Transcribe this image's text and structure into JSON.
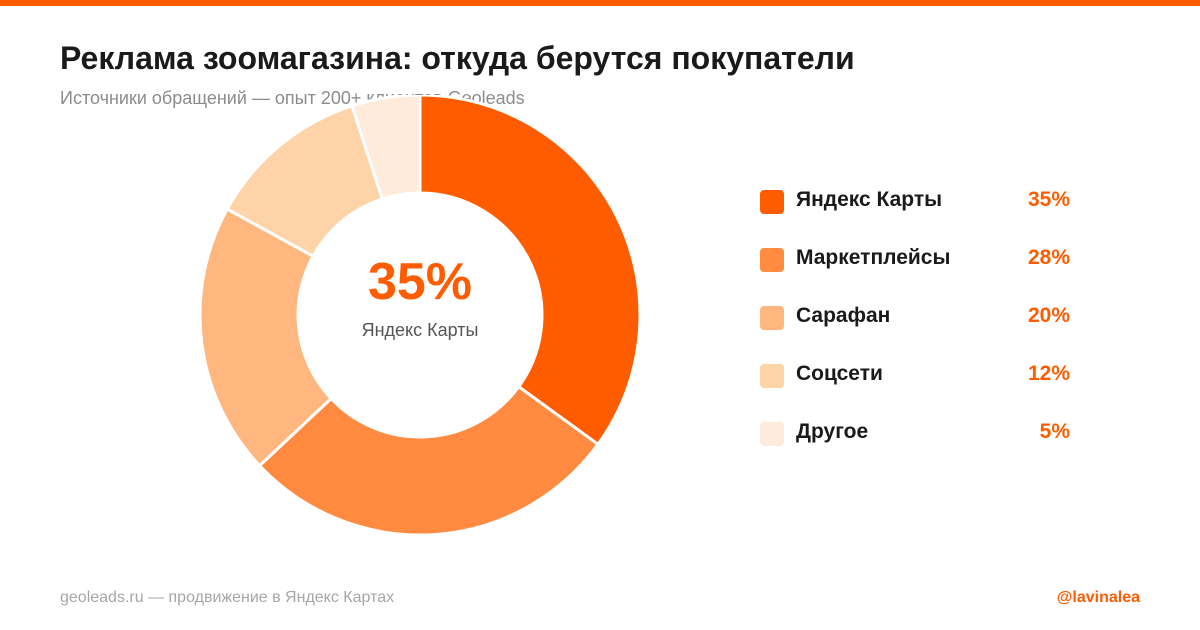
{
  "header": {
    "title": "Реклама зоомагазина: откуда берутся покупатели",
    "subtitle": "Источники обращений — опыт 200+ клиентов Geoleads"
  },
  "center": {
    "value": "35%",
    "label": "Яндекс Карты"
  },
  "colors": {
    "accent": "#ff5c00"
  },
  "chart_data": {
    "type": "pie",
    "donut": true,
    "legend_position": "right",
    "slices": [
      {
        "label": "Яндекс Карты",
        "value": 35,
        "display": "35%",
        "color": "#ff5c00"
      },
      {
        "label": "Маркетплейсы",
        "value": 28,
        "display": "28%",
        "color": "#ff8a40"
      },
      {
        "label": "Сарафан",
        "value": 20,
        "display": "20%",
        "color": "#ffb77f"
      },
      {
        "label": "Соцсети",
        "value": 12,
        "display": "12%",
        "color": "#ffd3a8"
      },
      {
        "label": "Другое",
        "value": 5,
        "display": "5%",
        "color": "#ffebdc"
      }
    ]
  },
  "footer": {
    "left": "geoleads.ru — продвижение в Яндекс Картах",
    "right": "@lavinalea"
  }
}
